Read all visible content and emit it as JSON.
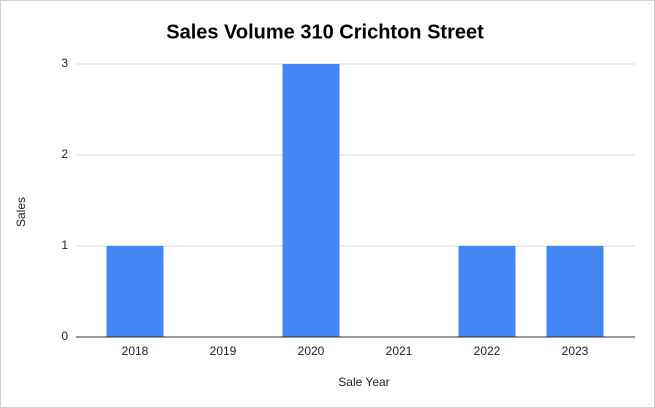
{
  "chart_data": {
    "type": "bar",
    "title": "Sales Volume 310 Crichton Street",
    "x_label": "Sale Year",
    "y_label": "Sales",
    "categories": [
      "2018",
      "2019",
      "2020",
      "2021",
      "2022",
      "2023"
    ],
    "values": [
      1,
      0,
      3,
      0,
      1,
      1
    ],
    "color": "#4285f4",
    "ylim": [
      0,
      3
    ],
    "yticks": [
      0,
      1,
      2,
      3
    ],
    "grid": true
  }
}
